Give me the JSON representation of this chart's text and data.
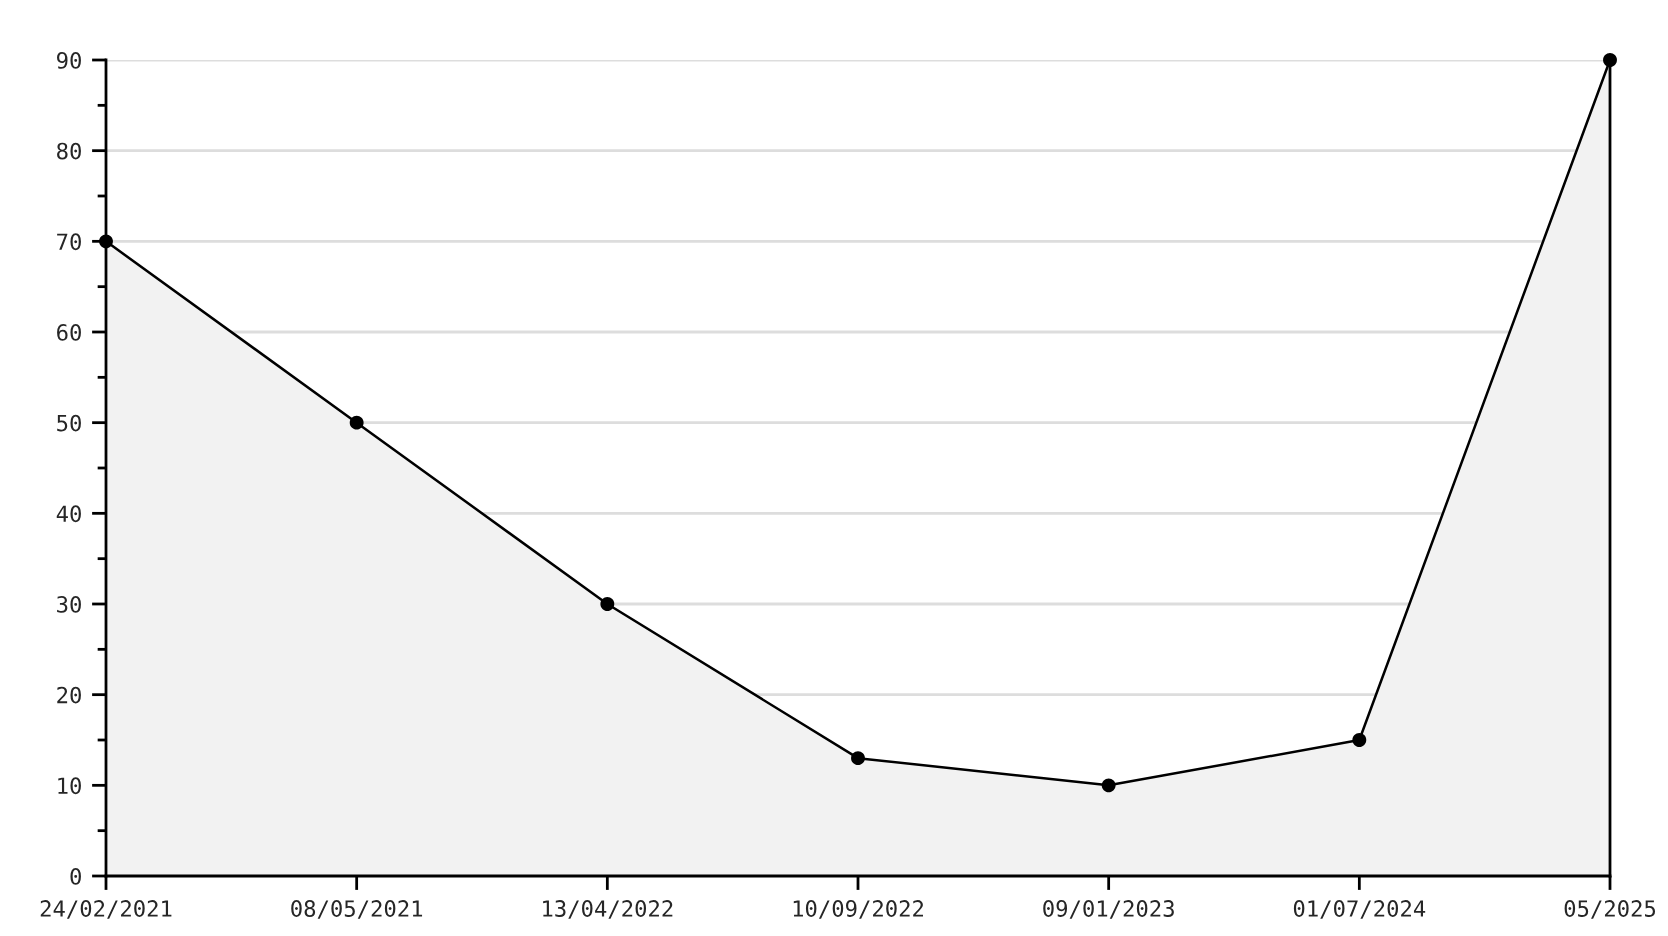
{
  "chart_data": {
    "type": "area",
    "categories": [
      "24/02/2021",
      "08/05/2021",
      "13/04/2022",
      "10/09/2022",
      "09/01/2023",
      "01/07/2024",
      "05/2025"
    ],
    "series": [
      {
        "color": "#000000",
        "values": [
          70,
          50,
          30,
          13,
          10,
          15,
          90
        ]
      }
    ],
    "ylim": [
      0,
      90
    ],
    "yticks": [
      0,
      10,
      20,
      30,
      40,
      50,
      60,
      70,
      80,
      90
    ],
    "grid": "y",
    "marker": "circle",
    "line_style": "solid"
  }
}
